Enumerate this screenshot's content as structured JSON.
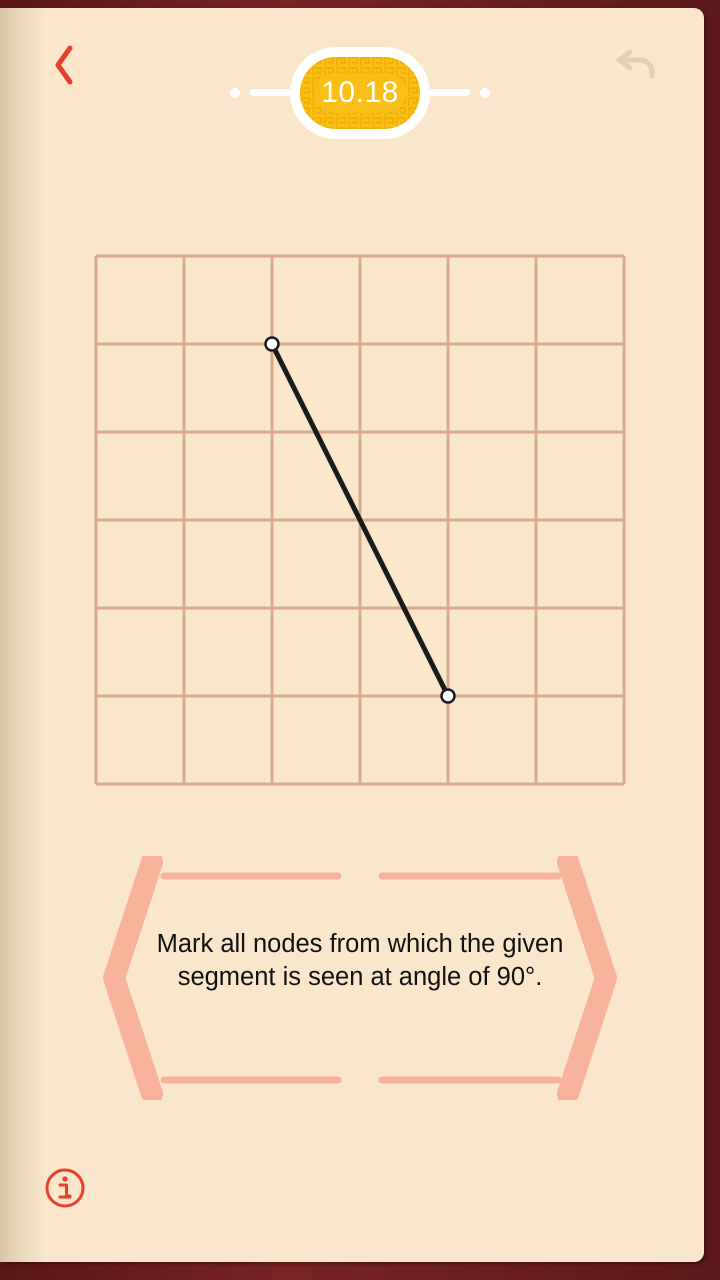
{
  "header": {
    "back_icon": "chevron-left-icon",
    "undo_icon": "undo-arrow-icon",
    "level": "10.18"
  },
  "board": {
    "columns": 6,
    "rows": 6,
    "segment": {
      "start": {
        "col": 2,
        "row": 1
      },
      "end": {
        "col": 4,
        "row": 5
      }
    }
  },
  "task": {
    "text": "Mark all nodes from which the given segment is seen at angle of 90°."
  },
  "footer": {
    "info_icon": "info-icon"
  },
  "colors": {
    "accent_red": "#e8402f",
    "badge_yellow": "#f9bf16",
    "grid_line": "#d9ab8c",
    "segment": "#1a1a1a",
    "frame": "#f7b39a",
    "page_bg": "#f9e6cb",
    "cover": "#6e1f1f"
  }
}
